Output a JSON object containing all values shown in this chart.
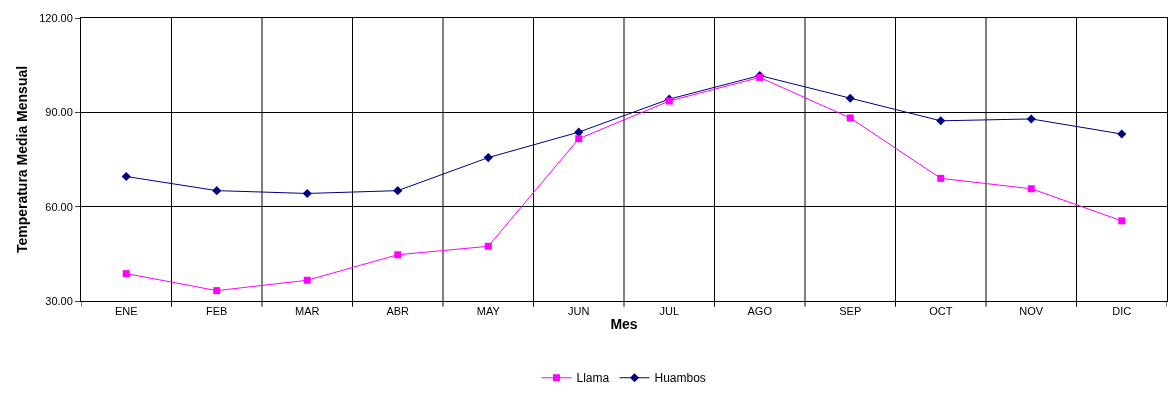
{
  "chart_data": {
    "type": "line",
    "xlabel": "Mes",
    "ylabel": "Temperatura Media Mensual",
    "categories": [
      "ENE",
      "FEB",
      "MAR",
      "ABR",
      "MAY",
      "JUN",
      "JUL",
      "AGO",
      "SEP",
      "OCT",
      "NOV",
      "DIC"
    ],
    "series": [
      {
        "name": "Llama",
        "color": "#ff00ff",
        "marker": "square",
        "values": [
          38.7,
          33.3,
          36.6,
          44.7,
          47.4,
          81.6,
          93.6,
          101.1,
          88.2,
          69.0,
          65.7,
          55.5
        ]
      },
      {
        "name": "Huambos",
        "color": "#000080",
        "marker": "diamond",
        "values": [
          69.6,
          65.1,
          64.2,
          65.1,
          75.6,
          83.7,
          94.2,
          101.7,
          94.5,
          87.3,
          87.9,
          83.1
        ]
      }
    ],
    "ylim": [
      30,
      120
    ],
    "yticks": [
      {
        "value": 30,
        "label": "30.00"
      },
      {
        "value": 60,
        "label": "60.00"
      },
      {
        "value": 90,
        "label": "90.00"
      },
      {
        "value": 120,
        "label": "120.00"
      }
    ],
    "grid": true,
    "legend": "bottom",
    "line_style": "solid"
  }
}
